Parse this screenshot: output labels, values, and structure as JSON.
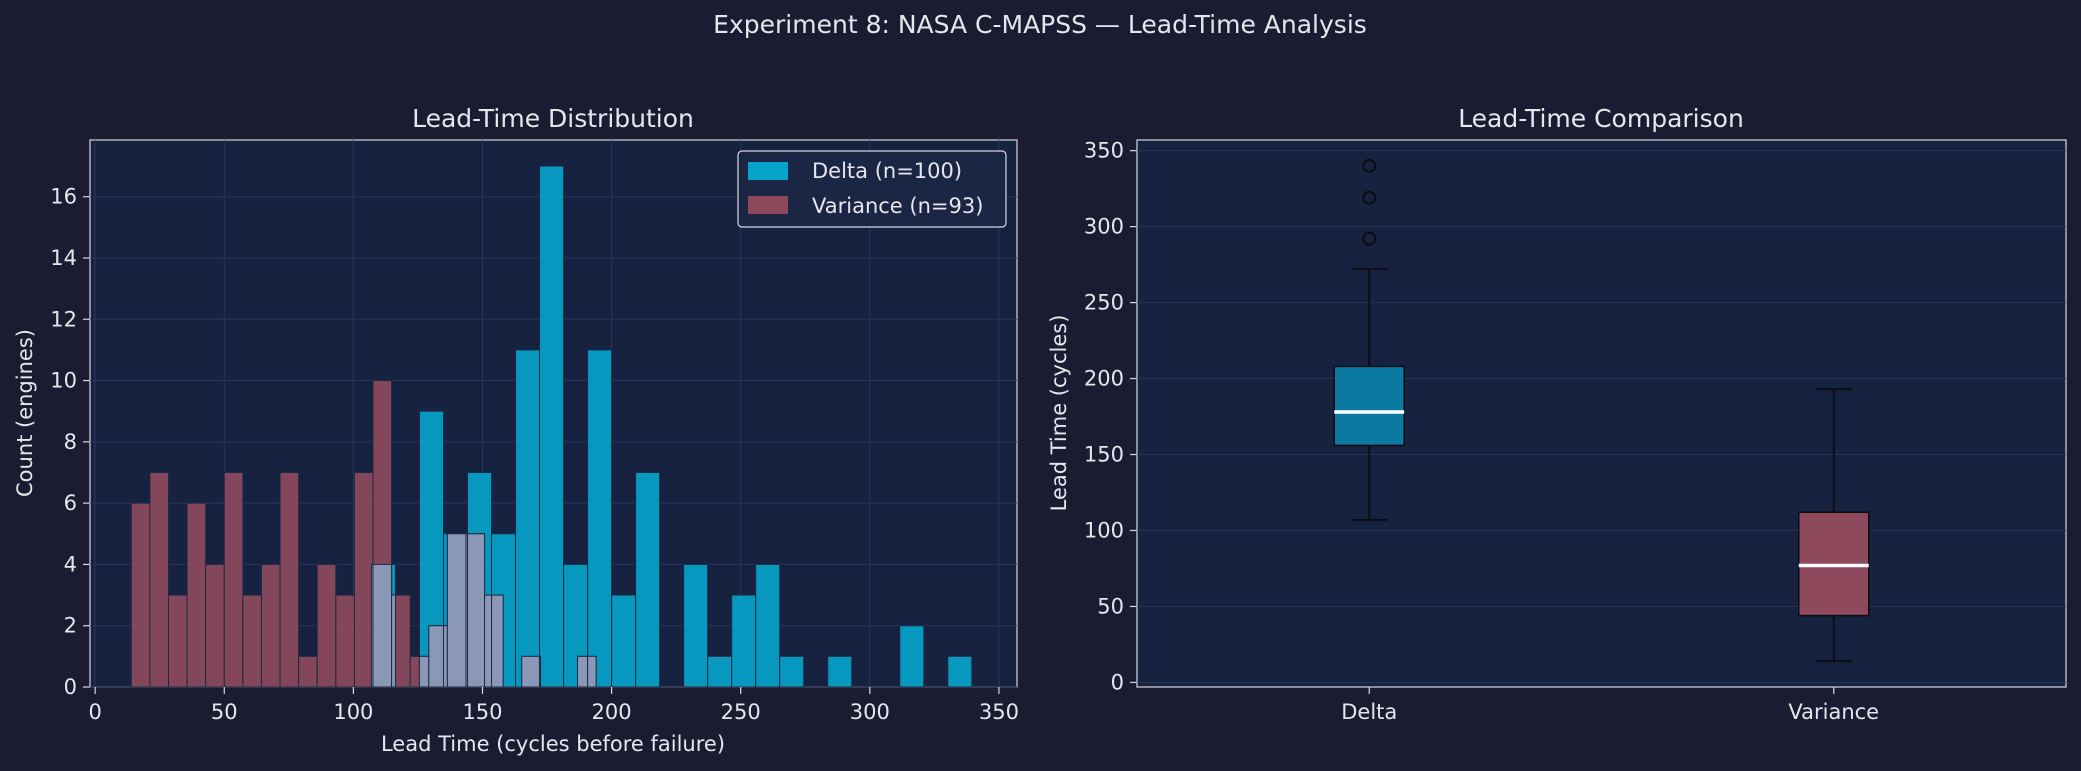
{
  "figure": {
    "suptitle": "Experiment 8: NASA C-MAPSS — Lead-Time Analysis",
    "background": "#1b1c31",
    "axes_background": "#172241",
    "delta_color": "#06a3cb",
    "variance_color": "#8e4a5c",
    "overlap_color": "#8a97b6"
  },
  "chart_data": [
    {
      "type": "histogram",
      "title": "Lead-Time Distribution",
      "xlabel": "Lead Time (cycles before failure)",
      "ylabel": "Count (engines)",
      "xlim": [
        -2,
        357
      ],
      "ylim": [
        0,
        17.85
      ],
      "xticks": [
        0,
        50,
        100,
        150,
        200,
        250,
        300,
        350
      ],
      "yticks": [
        0,
        2,
        4,
        6,
        8,
        10,
        12,
        14,
        16
      ],
      "grid": true,
      "legend_position": "top-right",
      "series": [
        {
          "name": "Delta (n=100)",
          "bin_width": 9.3,
          "bins": [
            [
              107,
              4
            ],
            [
              116.3,
              0
            ],
            [
              125.6,
              9
            ],
            [
              134.9,
              5
            ],
            [
              144.2,
              7
            ],
            [
              153.5,
              5
            ],
            [
              162.8,
              11
            ],
            [
              172.1,
              17
            ],
            [
              181.4,
              4
            ],
            [
              190.7,
              11
            ],
            [
              200,
              3
            ],
            [
              209.3,
              7
            ],
            [
              218.6,
              0
            ],
            [
              227.9,
              4
            ],
            [
              237.2,
              1
            ],
            [
              246.5,
              3
            ],
            [
              255.8,
              4
            ],
            [
              265.1,
              1
            ],
            [
              274.4,
              0
            ],
            [
              283.7,
              1
            ],
            [
              293,
              0
            ],
            [
              302.3,
              0
            ],
            [
              311.6,
              2
            ],
            [
              320.9,
              0
            ],
            [
              330.2,
              1
            ]
          ]
        },
        {
          "name": "Variance (n=93)",
          "bin_width": 7.2,
          "bins": [
            [
              14,
              6
            ],
            [
              21.2,
              7
            ],
            [
              28.4,
              3
            ],
            [
              35.6,
              6
            ],
            [
              42.8,
              4
            ],
            [
              50,
              7
            ],
            [
              57.2,
              3
            ],
            [
              64.4,
              4
            ],
            [
              71.6,
              7
            ],
            [
              78.8,
              1
            ],
            [
              86,
              4
            ],
            [
              93.2,
              3
            ],
            [
              100.4,
              7
            ],
            [
              107.6,
              10
            ],
            [
              114.8,
              3
            ],
            [
              122,
              1
            ],
            [
              129.2,
              2
            ],
            [
              136.4,
              5
            ],
            [
              143.6,
              5
            ],
            [
              150.8,
              3
            ],
            [
              158,
              0
            ],
            [
              165.2,
              1
            ],
            [
              172.4,
              0
            ],
            [
              179.6,
              0
            ],
            [
              186.8,
              1
            ]
          ]
        }
      ]
    },
    {
      "type": "boxplot",
      "title": "Lead-Time Comparison",
      "ylabel": "Lead Time (cycles)",
      "ylim": [
        -3,
        357
      ],
      "yticks": [
        0,
        50,
        100,
        150,
        200,
        250,
        300,
        350
      ],
      "grid": true,
      "boxes": [
        {
          "name": "Delta",
          "whisker_low": 107,
          "q1": 156,
          "median": 178,
          "q3": 208,
          "whisker_high": 272,
          "outliers": [
            292,
            319,
            340
          ]
        },
        {
          "name": "Variance",
          "whisker_low": 14,
          "q1": 44,
          "median": 77,
          "q3": 112,
          "whisker_high": 193,
          "outliers": []
        }
      ]
    }
  ]
}
